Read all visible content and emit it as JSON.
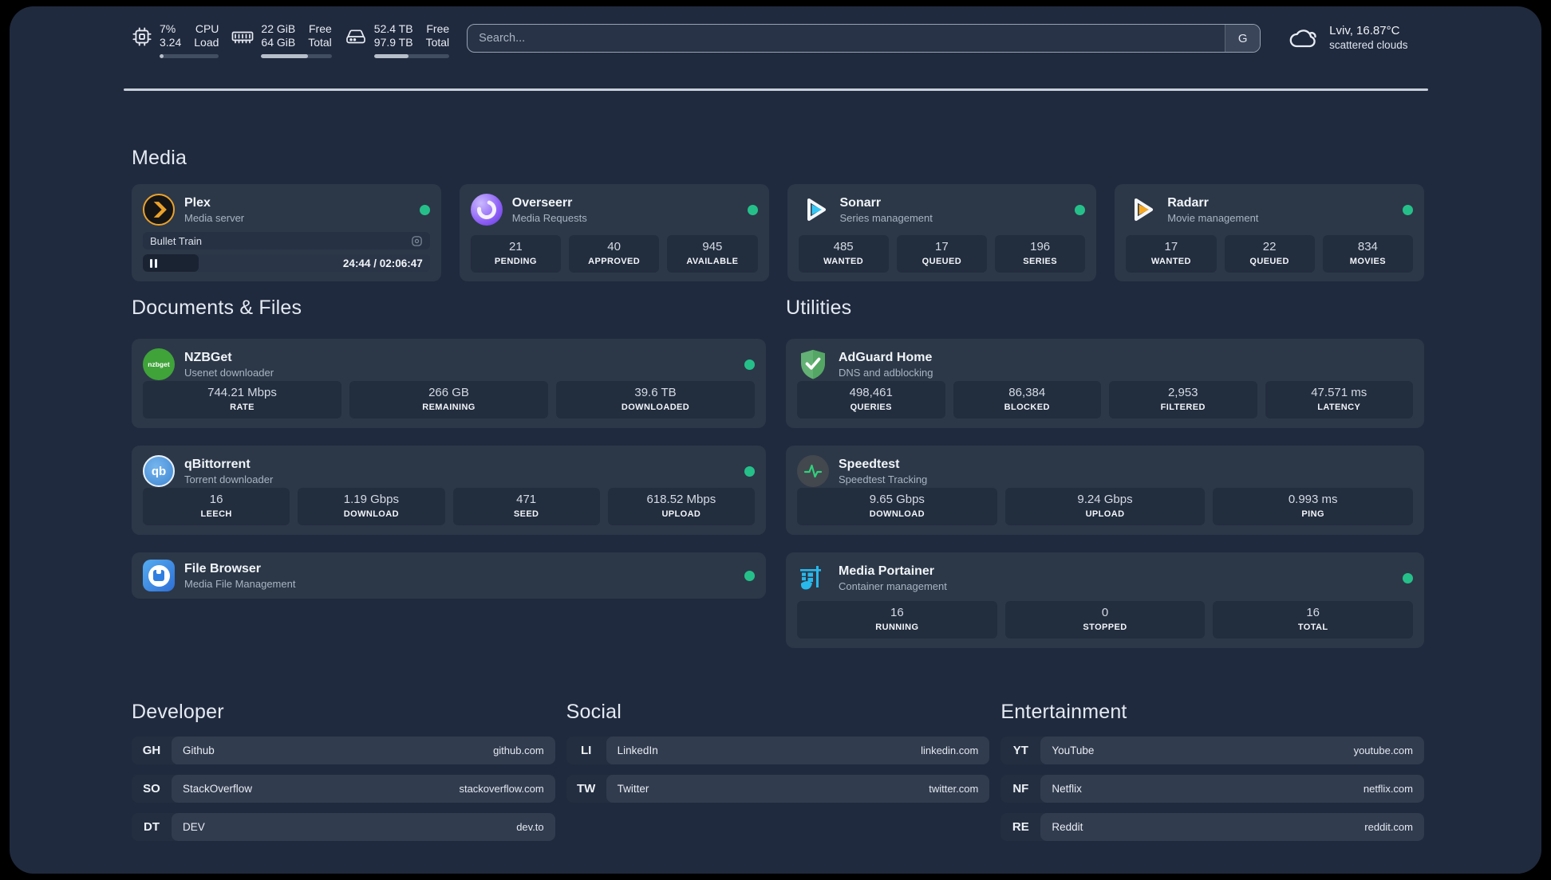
{
  "topbar": {
    "cpu": {
      "value1": "7%",
      "value2": "3.24",
      "label1": "CPU",
      "label2": "Load",
      "progress_pct": 7
    },
    "ram": {
      "value1": "22 GiB",
      "value2": "64 GiB",
      "label1": "Free",
      "label2": "Total",
      "progress_pct": 66
    },
    "disk": {
      "value1": "52.4 TB",
      "value2": "97.9 TB",
      "label1": "Free",
      "label2": "Total",
      "progress_pct": 46
    },
    "search": {
      "placeholder": "Search...",
      "button_label": "G"
    },
    "weather": {
      "line1": "Lviv, 16.87°C",
      "line2": "scattered clouds"
    }
  },
  "media": {
    "title": "Media",
    "plex": {
      "name": "Plex",
      "subtitle": "Media server",
      "now_playing": "Bullet Train",
      "time": "24:44 / 02:06:47",
      "progress_pct": 19.5
    },
    "overseerr": {
      "name": "Overseerr",
      "subtitle": "Media Requests",
      "stats": [
        {
          "value": "21",
          "label": "PENDING"
        },
        {
          "value": "40",
          "label": "APPROVED"
        },
        {
          "value": "945",
          "label": "AVAILABLE"
        }
      ]
    },
    "sonarr": {
      "name": "Sonarr",
      "subtitle": "Series management",
      "stats": [
        {
          "value": "485",
          "label": "WANTED"
        },
        {
          "value": "17",
          "label": "QUEUED"
        },
        {
          "value": "196",
          "label": "SERIES"
        }
      ]
    },
    "radarr": {
      "name": "Radarr",
      "subtitle": "Movie management",
      "stats": [
        {
          "value": "17",
          "label": "WANTED"
        },
        {
          "value": "22",
          "label": "QUEUED"
        },
        {
          "value": "834",
          "label": "MOVIES"
        }
      ]
    }
  },
  "documents": {
    "title": "Documents & Files",
    "nzbget": {
      "name": "NZBGet",
      "subtitle": "Usenet downloader",
      "icon_text": "nzbget",
      "stats": [
        {
          "value": "744.21 Mbps",
          "label": "RATE"
        },
        {
          "value": "266 GB",
          "label": "REMAINING"
        },
        {
          "value": "39.6 TB",
          "label": "DOWNLOADED"
        }
      ]
    },
    "qbittorrent": {
      "name": "qBittorrent",
      "subtitle": "Torrent downloader",
      "icon_text": "qb",
      "stats": [
        {
          "value": "16",
          "label": "LEECH"
        },
        {
          "value": "1.19 Gbps",
          "label": "DOWNLOAD"
        },
        {
          "value": "471",
          "label": "SEED"
        },
        {
          "value": "618.52 Mbps",
          "label": "UPLOAD"
        }
      ]
    },
    "filebrowser": {
      "name": "File Browser",
      "subtitle": "Media File Management"
    }
  },
  "utilities": {
    "title": "Utilities",
    "adguard": {
      "name": "AdGuard Home",
      "subtitle": "DNS and adblocking",
      "stats": [
        {
          "value": "498,461",
          "label": "QUERIES"
        },
        {
          "value": "86,384",
          "label": "BLOCKED"
        },
        {
          "value": "2,953",
          "label": "FILTERED"
        },
        {
          "value": "47.571 ms",
          "label": "LATENCY"
        }
      ]
    },
    "speedtest": {
      "name": "Speedtest",
      "subtitle": "Speedtest Tracking",
      "stats": [
        {
          "value": "9.65 Gbps",
          "label": "DOWNLOAD"
        },
        {
          "value": "9.24 Gbps",
          "label": "UPLOAD"
        },
        {
          "value": "0.993 ms",
          "label": "PING"
        }
      ]
    },
    "portainer": {
      "name": "Media Portainer",
      "subtitle": "Container management",
      "stats": [
        {
          "value": "16",
          "label": "RUNNING"
        },
        {
          "value": "0",
          "label": "STOPPED"
        },
        {
          "value": "16",
          "label": "TOTAL"
        }
      ]
    }
  },
  "bookmarks": {
    "developer": {
      "title": "Developer",
      "links": [
        {
          "abbr": "GH",
          "name": "Github",
          "url": "github.com"
        },
        {
          "abbr": "SO",
          "name": "StackOverflow",
          "url": "stackoverflow.com"
        },
        {
          "abbr": "DT",
          "name": "DEV",
          "url": "dev.to"
        }
      ]
    },
    "social": {
      "title": "Social",
      "links": [
        {
          "abbr": "LI",
          "name": "LinkedIn",
          "url": "linkedin.com"
        },
        {
          "abbr": "TW",
          "name": "Twitter",
          "url": "twitter.com"
        }
      ]
    },
    "entertainment": {
      "title": "Entertainment",
      "links": [
        {
          "abbr": "YT",
          "name": "YouTube",
          "url": "youtube.com"
        },
        {
          "abbr": "NF",
          "name": "Netflix",
          "url": "netflix.com"
        },
        {
          "abbr": "RE",
          "name": "Reddit",
          "url": "reddit.com"
        }
      ]
    }
  },
  "colors": {
    "status_online": "#25c08a",
    "panel_bg": "#202a3e",
    "card_bg": "#2c3848",
    "tile_bg": "#222d3e",
    "plex_orange": "#eba22b",
    "sonarr_blue": "#35c5f4",
    "radarr_orange": "#f7a823",
    "adguard_green": "#63b174",
    "portainer_cyan": "#29b8eb",
    "speedtest_pulse": "#2fd17c",
    "nzbget_green": "#3fa33a",
    "qbittorrent_blue": "#4f9bdd",
    "filebrowser_blue": "#2f7fe0"
  }
}
